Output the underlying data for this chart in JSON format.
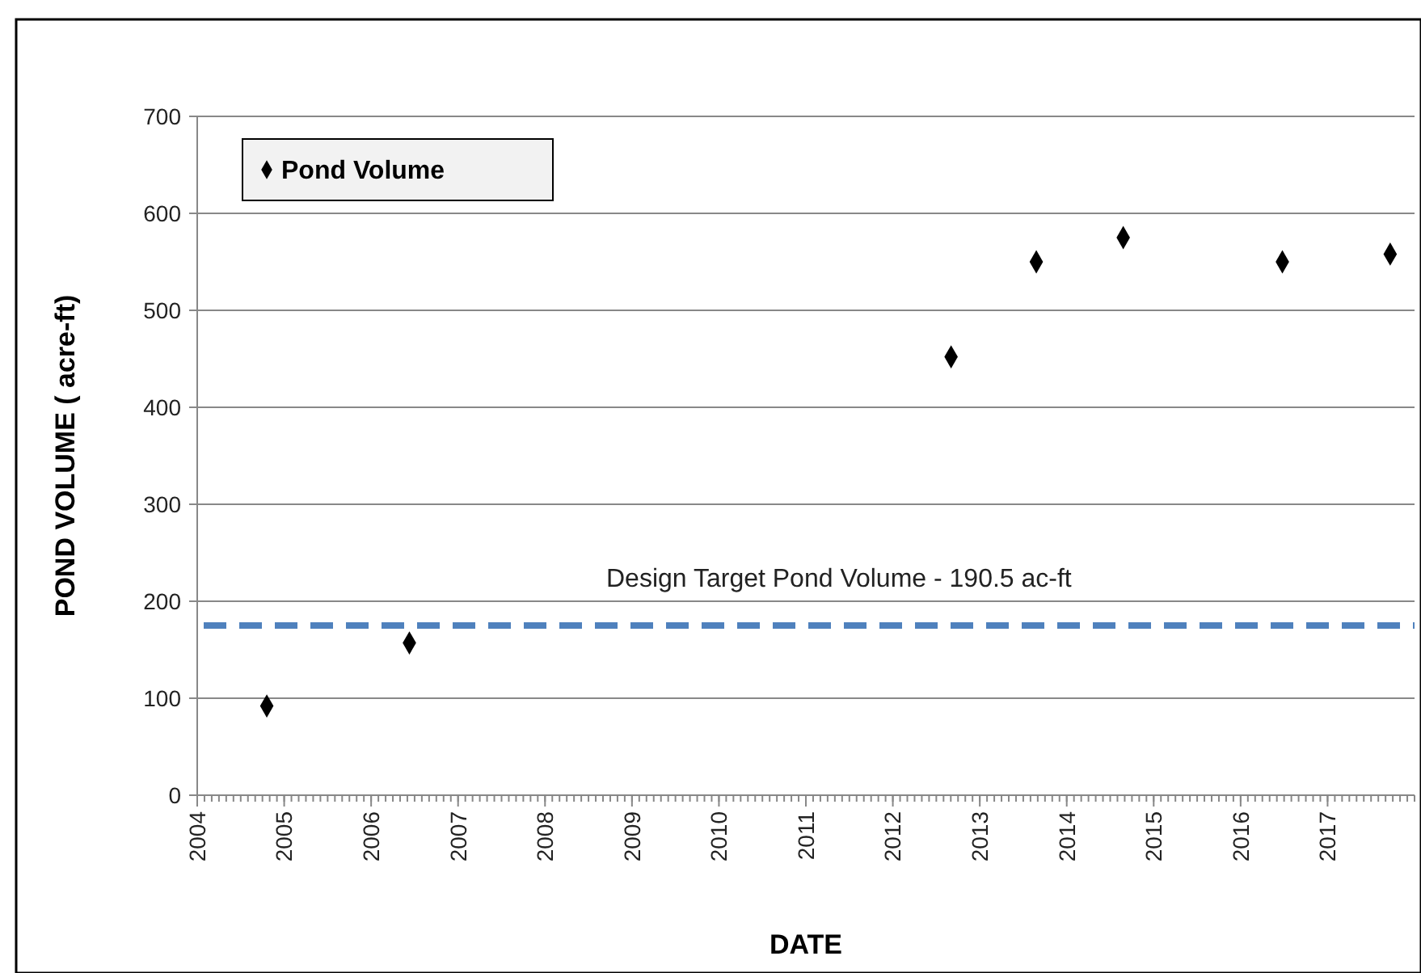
{
  "chart_data": {
    "type": "scatter",
    "xlabel": "DATE",
    "ylabel": "POND VOLUME ( acre-ft)",
    "x": [
      2004.8,
      2006.44,
      2012.67,
      2013.65,
      2014.65,
      2016.48,
      2017.72
    ],
    "series": [
      {
        "name": "Pond Volume",
        "color": "#000000",
        "values": [
          92,
          157,
          452,
          550,
          575,
          550,
          558
        ]
      }
    ],
    "xlim": [
      2004,
      2018
    ],
    "xticks": [
      2004,
      2005,
      2006,
      2007,
      2008,
      2009,
      2010,
      2011,
      2012,
      2013,
      2014,
      2015,
      2016,
      2017
    ],
    "ylim": [
      0,
      700
    ],
    "yticks": [
      0,
      100,
      200,
      300,
      400,
      500,
      600,
      700
    ],
    "grid": "y",
    "legend": "top left",
    "marker": "diamond",
    "ref_lines": [
      {
        "axis": "y",
        "value": 175,
        "label": "Design Target Pond Volume - 190.5 ac-ft",
        "color": "#4f81bd",
        "line_style": "dashed"
      }
    ]
  }
}
